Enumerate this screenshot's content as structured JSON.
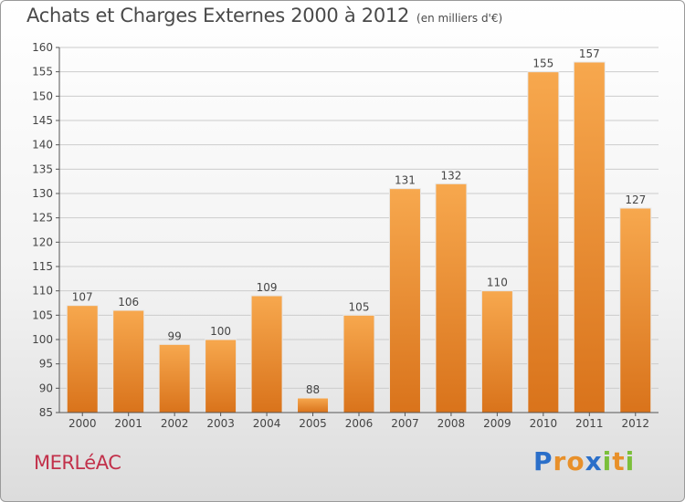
{
  "title": "Achats et Charges Externes 2000 à 2012",
  "unit": "(en milliers d'€)",
  "commune": "MERLéAC",
  "logo": {
    "text": "Proxiti",
    "letters": [
      {
        "char": "P",
        "color": "#2b6fc9"
      },
      {
        "char": "r",
        "color": "#e8902a"
      },
      {
        "char": "o",
        "color": "#e8902a"
      },
      {
        "char": "x",
        "color": "#2b6fc9"
      },
      {
        "char": "i",
        "color": "#7bbf3a"
      },
      {
        "char": "t",
        "color": "#e8902a"
      },
      {
        "char": "i",
        "color": "#7bbf3a"
      }
    ]
  },
  "colors": {
    "bar_light": "#f7a84e",
    "bar_dark": "#d9731b",
    "axis": "#555555",
    "grid": "#cccccc",
    "text": "#444444"
  },
  "chart_data": {
    "type": "bar",
    "categories": [
      "2000",
      "2001",
      "2002",
      "2003",
      "2004",
      "2005",
      "2006",
      "2007",
      "2008",
      "2009",
      "2010",
      "2011",
      "2012"
    ],
    "values": [
      107,
      106,
      99,
      100,
      109,
      88,
      105,
      131,
      132,
      110,
      155,
      157,
      127
    ],
    "ylim": [
      85,
      160
    ],
    "yticks": [
      85,
      90,
      95,
      100,
      105,
      110,
      115,
      120,
      125,
      130,
      135,
      140,
      145,
      150,
      155,
      160
    ],
    "title": "Achats et Charges Externes 2000 à 2012",
    "xlabel": "",
    "ylabel": "",
    "grid": true,
    "data_labels": true
  }
}
